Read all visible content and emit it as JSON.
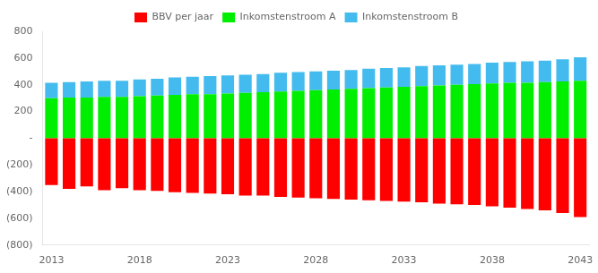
{
  "chart_data": {
    "type": "bar",
    "stacked": true,
    "categories": [
      "2013",
      null,
      null,
      null,
      null,
      "2018",
      null,
      null,
      null,
      null,
      "2023",
      null,
      null,
      null,
      null,
      "2028",
      null,
      null,
      null,
      null,
      "2033",
      null,
      null,
      null,
      null,
      "2038",
      null,
      null,
      null,
      null,
      "2043"
    ],
    "series": [
      {
        "name": "BBV per jaar",
        "color": "#FF0000",
        "values": [
          -350,
          -380,
          -360,
          -390,
          -375,
          -390,
          -395,
          -405,
          -410,
          -415,
          -420,
          -430,
          -430,
          -440,
          -445,
          -450,
          -455,
          -460,
          -465,
          -470,
          -475,
          -480,
          -490,
          -495,
          -500,
          -510,
          -520,
          -530,
          -540,
          -560,
          -590
        ]
      },
      {
        "name": "Inkomstenstroom A",
        "color": "#00EE00",
        "values": [
          300,
          305,
          305,
          310,
          310,
          315,
          320,
          325,
          330,
          330,
          335,
          340,
          345,
          350,
          355,
          360,
          365,
          370,
          375,
          380,
          385,
          390,
          395,
          400,
          405,
          410,
          415,
          415,
          420,
          425,
          430
        ]
      },
      {
        "name": "Inkomstenstroom B",
        "color": "#44BBEE",
        "values": [
          115,
          115,
          120,
          120,
          120,
          125,
          125,
          130,
          130,
          135,
          135,
          135,
          135,
          140,
          140,
          140,
          140,
          140,
          145,
          145,
          145,
          150,
          150,
          150,
          150,
          155,
          155,
          160,
          160,
          165,
          175
        ]
      }
    ],
    "ylim": [
      -800,
      800
    ],
    "yticks": [
      {
        "value": -800,
        "label": "(800)"
      },
      {
        "value": -600,
        "label": "(600)"
      },
      {
        "value": -400,
        "label": "(400)"
      },
      {
        "value": -200,
        "label": "(200)"
      },
      {
        "value": 0,
        "label": "-"
      },
      200,
      400,
      600,
      800
    ],
    "grid": false,
    "legend": "top"
  }
}
